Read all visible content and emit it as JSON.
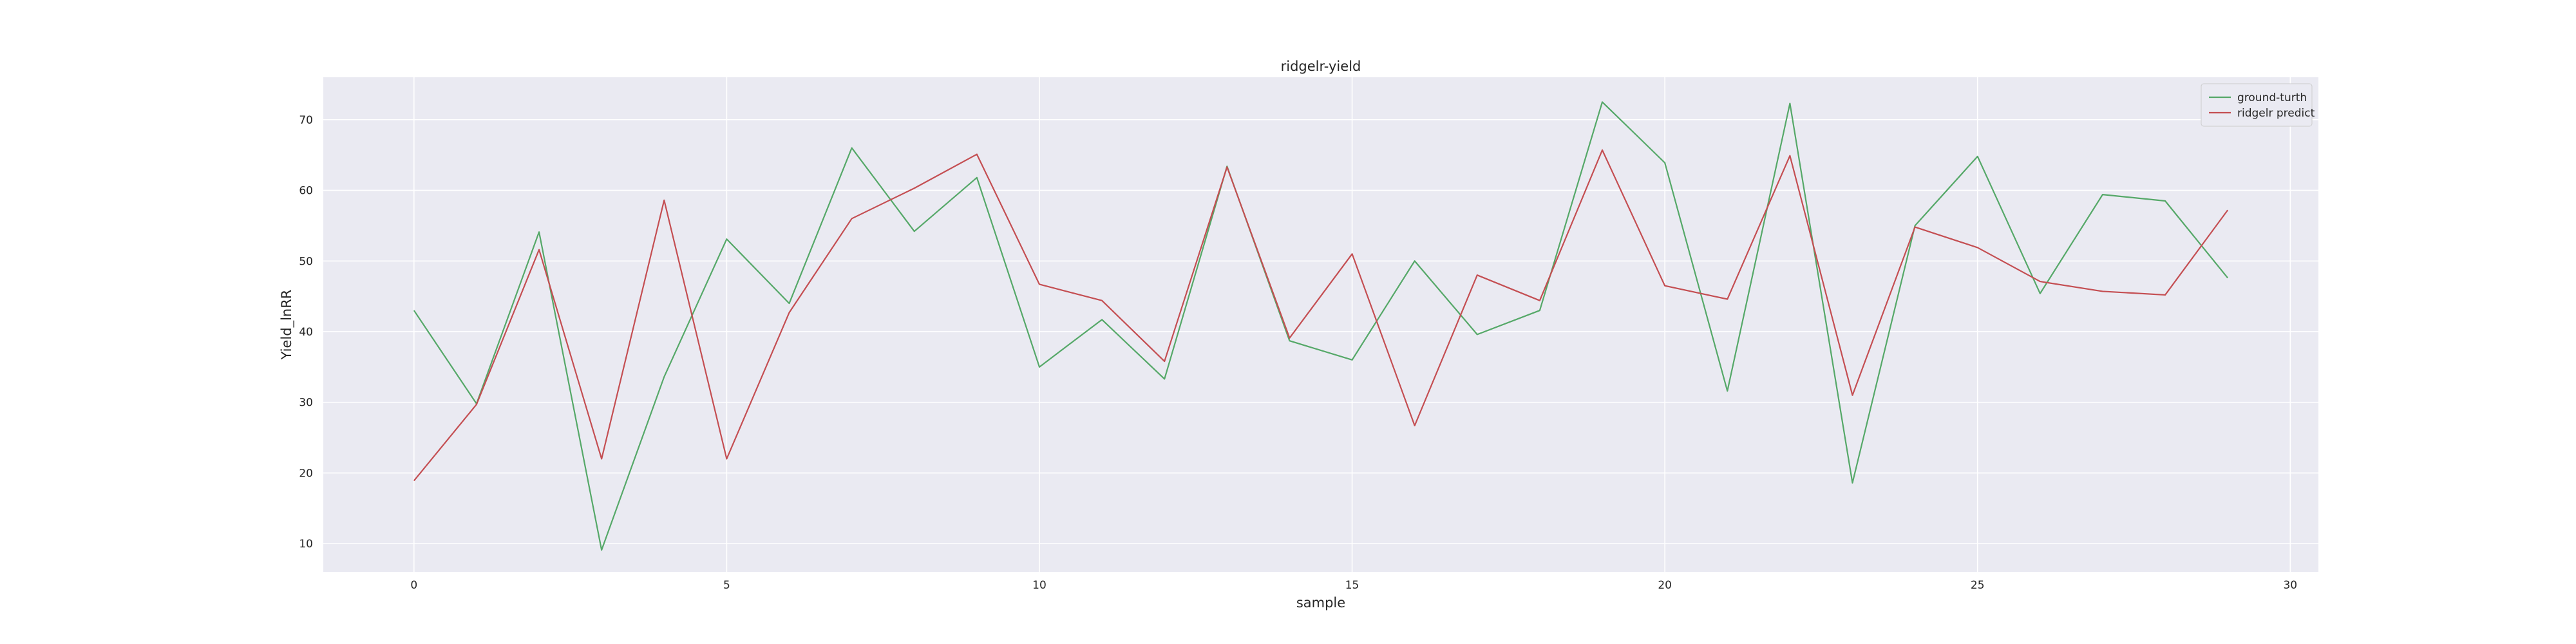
{
  "chart_data": {
    "type": "line",
    "title": "ridgelr-yield",
    "xlabel": "sample",
    "ylabel": "Yield_lnRR",
    "xlim": [
      -1.45,
      30.45
    ],
    "ylim": [
      6.0,
      76.0
    ],
    "xticks": [
      0,
      5,
      10,
      15,
      20,
      25,
      30
    ],
    "yticks": [
      10,
      20,
      30,
      40,
      50,
      60,
      70
    ],
    "grid": true,
    "legend_position": "top-right",
    "x": [
      0,
      1,
      2,
      3,
      4,
      5,
      6,
      7,
      8,
      9,
      10,
      11,
      12,
      13,
      14,
      15,
      16,
      17,
      18,
      19,
      20,
      21,
      22,
      23,
      24,
      25,
      26,
      27,
      28,
      29
    ],
    "series": [
      {
        "name": "ground-turth",
        "color": "#55a868",
        "values": [
          43.0,
          29.8,
          54.1,
          9.1,
          33.6,
          53.1,
          44.0,
          66.0,
          54.2,
          61.8,
          35.0,
          41.7,
          33.3,
          63.4,
          38.7,
          36.0,
          50.0,
          39.6,
          43.0,
          72.5,
          63.9,
          31.6,
          72.3,
          18.6,
          55.0,
          64.8,
          45.4,
          59.4,
          58.5,
          47.6
        ]
      },
      {
        "name": "ridgelr predict",
        "color": "#c44e52",
        "values": [
          18.9,
          29.7,
          51.6,
          22.0,
          58.6,
          22.0,
          42.7,
          56.0,
          60.3,
          65.1,
          46.7,
          44.4,
          35.8,
          63.3,
          39.1,
          51.0,
          26.7,
          48.0,
          44.4,
          65.7,
          46.5,
          44.6,
          64.9,
          31.0,
          54.8,
          51.9,
          47.1,
          45.7,
          45.2,
          57.2
        ]
      }
    ]
  }
}
